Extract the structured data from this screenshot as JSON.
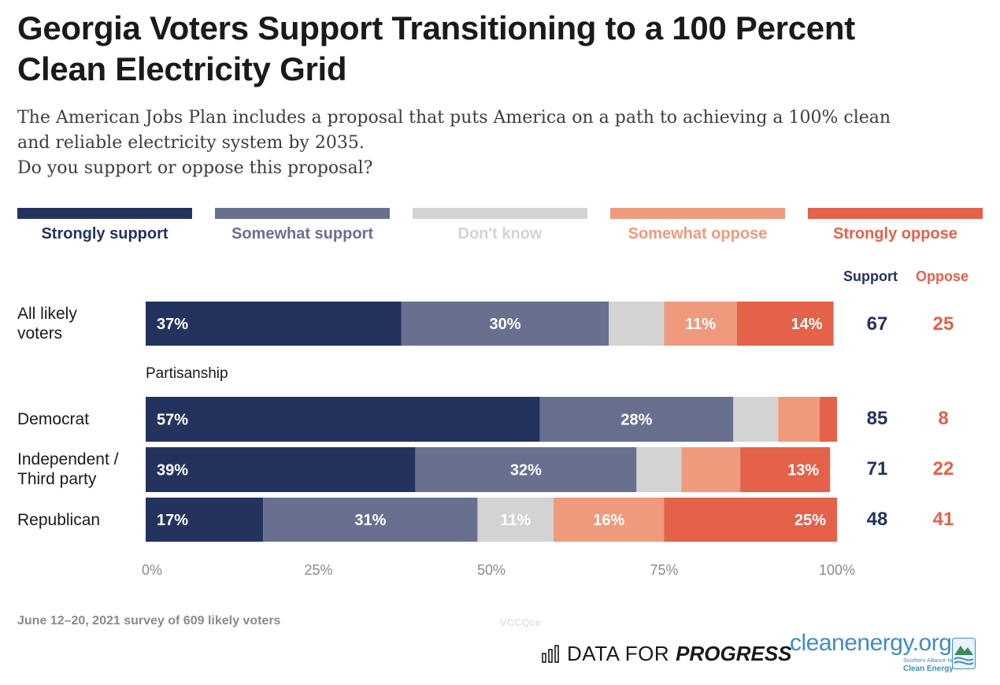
{
  "title_line1": "Georgia Voters Support Transitioning to a 100 Percent",
  "title_line2": "Clean Electricity Grid",
  "subtitle_line1": "The American Jobs Plan includes a proposal that puts America on a path to achieving a 100% clean",
  "subtitle_line2": "and reliable electricity system by 2035.",
  "subtitle_line3": "Do you support or oppose this proposal?",
  "legend": [
    {
      "label": "Strongly support",
      "color": "#24335e",
      "text_color": "#24335e"
    },
    {
      "label": "Somewhat support",
      "color": "#69708f",
      "text_color": "#69708f"
    },
    {
      "label": "Don't know",
      "color": "#d3d3d3",
      "text_color": "#d3d3d3"
    },
    {
      "label": "Somewhat oppose",
      "color": "#ef9a7d",
      "text_color": "#ef9a7d"
    },
    {
      "label": "Strongly oppose",
      "color": "#e4614a",
      "text_color": "#e4614a"
    }
  ],
  "columns": {
    "support_label": "Support",
    "oppose_label": "Oppose",
    "support_color": "#24335e",
    "oppose_color": "#e4614a"
  },
  "group_label": "Partisanship",
  "row_labels": {
    "r0_line1": "All likely",
    "r0_line2": "voters",
    "r1_line1": "Democrat",
    "r2_line1": "Independent /",
    "r2_line2": "Third party",
    "r3_line1": "Republican"
  },
  "summary": [
    {
      "support": "67",
      "oppose": "25"
    },
    {
      "support": "85",
      "oppose": "8"
    },
    {
      "support": "71",
      "oppose": "22"
    },
    {
      "support": "48",
      "oppose": "41"
    }
  ],
  "chart_data": {
    "type": "bar",
    "orientation": "horizontal",
    "stacked": true,
    "categories": [
      "All likely voters",
      "Democrat",
      "Independent / Third party",
      "Republican"
    ],
    "series": [
      {
        "name": "Strongly support",
        "values": [
          37,
          57,
          39,
          17
        ]
      },
      {
        "name": "Somewhat support",
        "values": [
          30,
          28,
          32,
          31
        ]
      },
      {
        "name": "Don't know",
        "values": [
          8,
          6.5,
          6.5,
          11
        ]
      },
      {
        "name": "Somewhat oppose",
        "values": [
          10.5,
          6,
          8.5,
          16
        ]
      },
      {
        "name": "Strongly oppose",
        "values": [
          14,
          2.5,
          13,
          25
        ]
      }
    ],
    "data_labels": [
      [
        "37%",
        "30%",
        "",
        "11%",
        "14%"
      ],
      [
        "57%",
        "28%",
        "",
        "",
        ""
      ],
      [
        "39%",
        "32%",
        "",
        "",
        "13%"
      ],
      [
        "17%",
        "31%",
        "11%",
        "16%",
        "25%"
      ]
    ],
    "x_ticks": [
      "0%",
      "25%",
      "50%",
      "75%",
      "100%"
    ],
    "xlim": [
      0,
      100
    ],
    "grid": false,
    "legend_position": "top"
  },
  "footer": {
    "source": "June 12–20, 2021 survey of 609 likely voters",
    "watermark": "VCCQce",
    "dfp_word1": "DATA FOR",
    "dfp_word2": "PROGRESS",
    "ce_name": "cleanenergy.org",
    "ce_sub": "Southern Alliance for",
    "ce_name2": "Clean Energy"
  }
}
